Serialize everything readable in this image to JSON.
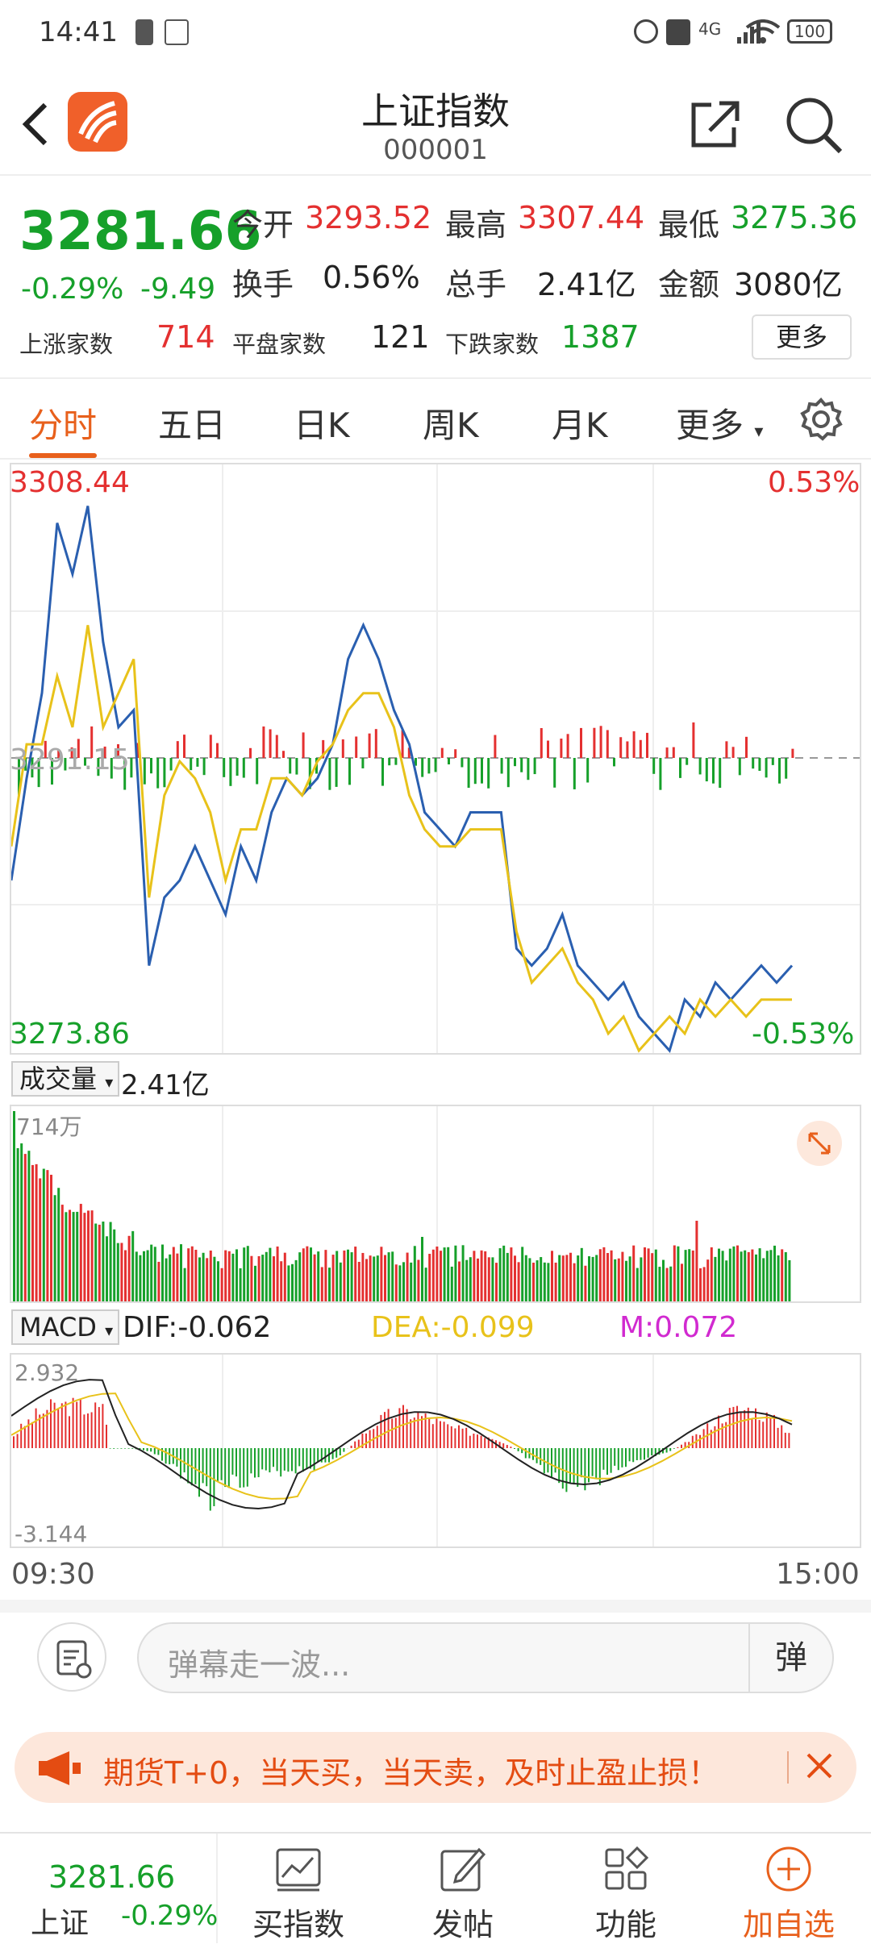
{
  "status": {
    "time": "14:41",
    "battery": "100",
    "network": "4G"
  },
  "header": {
    "title": "上证指数",
    "code": "000001"
  },
  "quote": {
    "price": "3281.66",
    "change_pct": "-0.29%",
    "change": "-9.49",
    "open_label": "今开",
    "open": "3293.52",
    "high_label": "最高",
    "high": "3307.44",
    "low_label": "最低",
    "low": "3275.36",
    "turnover_label": "换手",
    "turnover": "0.56%",
    "volume_label": "总手",
    "volume": "2.41亿",
    "amount_label": "金额",
    "amount": "3080亿",
    "up_label": "上涨家数",
    "up": "714",
    "flat_label": "平盘家数",
    "flat": "121",
    "down_label": "下跌家数",
    "down": "1387",
    "more": "更多"
  },
  "tabs": [
    "分时",
    "五日",
    "日K",
    "周K",
    "月K",
    "更多"
  ],
  "main_chart": {
    "top_price": "3308.44",
    "top_pct": "0.53%",
    "bottom_price": "3273.86",
    "bottom_pct": "-0.53%",
    "mid_label": "3291.15"
  },
  "volume_panel": {
    "selector": "成交量",
    "value": "2.41亿",
    "max": "714万"
  },
  "macd_panel": {
    "selector": "MACD",
    "dif": "DIF:-0.062",
    "dea": "DEA:-0.099",
    "m": "M:0.072",
    "max": "2.932",
    "min": "-3.144"
  },
  "time_axis": {
    "start": "09:30",
    "end": "15:00"
  },
  "danmu": {
    "placeholder": "弹幕走一波...",
    "button": "弹"
  },
  "ad": {
    "text": "期货T+0，当天买，当天卖，及时止盈止损！"
  },
  "bottom": {
    "price": "3281.66",
    "name": "上证",
    "pct": "-0.29%",
    "buy": "买指数",
    "post": "发帖",
    "func": "功能",
    "add": "加自选"
  },
  "chart_data": {
    "type": "line",
    "series": [
      {
        "values": [
          3284,
          3290,
          3295,
          3305,
          3302,
          3306,
          3298,
          3293,
          3294,
          3279,
          3283,
          3284,
          3286,
          3284,
          3282,
          3286,
          3284,
          3288,
          3290,
          3289,
          3290,
          3292,
          3297,
          3299,
          3297,
          3294,
          3292,
          3288,
          3287,
          3286,
          3288,
          3288,
          3288,
          3280,
          3279,
          3280,
          3282,
          3279,
          3278,
          3277,
          3278,
          3276,
          3275,
          3274,
          3277,
          3276,
          3278,
          3277,
          3278,
          3279,
          3278,
          3279
        ]
      },
      {
        "values": [
          3286,
          3292,
          3292,
          3296,
          3293,
          3299,
          3293,
          3295,
          3297,
          3283,
          3289,
          3291,
          3290,
          3288,
          3284,
          3287,
          3287,
          3290,
          3290,
          3289,
          3291,
          3292,
          3294,
          3295,
          3295,
          3293,
          3289,
          3287,
          3286,
          3286,
          3287,
          3287,
          3287,
          3281,
          3278,
          3279,
          3280,
          3278,
          3277,
          3275,
          3276,
          3274,
          3275,
          3276,
          3275,
          3277,
          3276,
          3277,
          3276,
          3277,
          3277,
          3277
        ]
      }
    ],
    "ylim": [
      3273.86,
      3308.44
    ]
  }
}
